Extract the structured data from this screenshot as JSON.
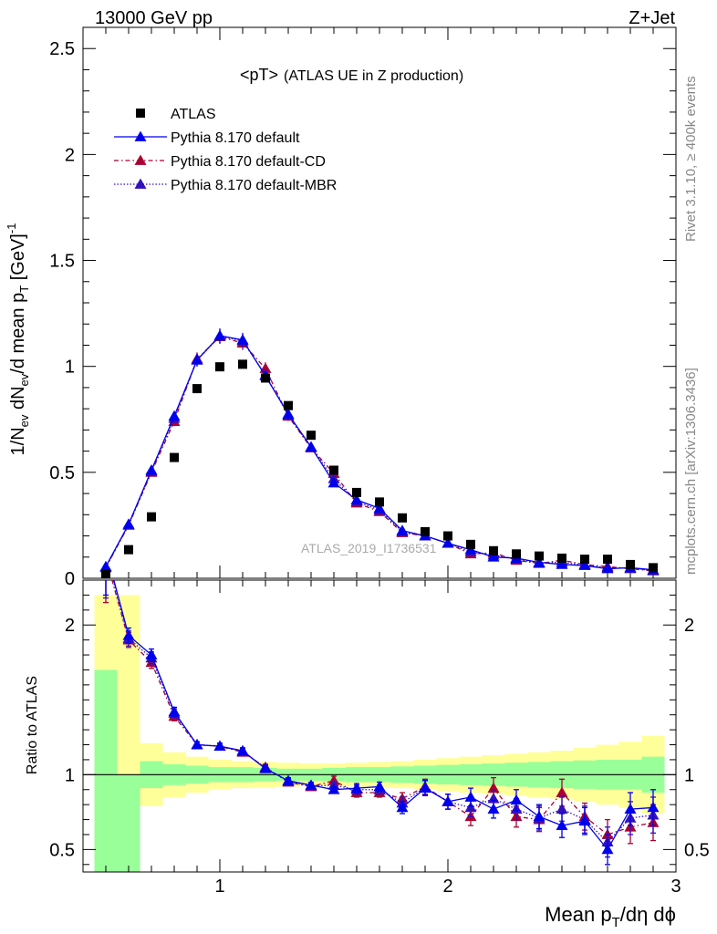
{
  "header": {
    "left": "13000 GeV pp",
    "right": "Z+Jet"
  },
  "side_text": {
    "rivet": "Rivet 3.1.10, ≥ 400k events",
    "mcplots": "mcplots.cern.ch [arXiv:1306.3436]"
  },
  "plot_title": {
    "main": "<pT>",
    "sub": "(ATLAS UE in Z production)"
  },
  "watermark": "ATLAS_2019_I1736531",
  "colors": {
    "data": "#000000",
    "default": "#0000ee",
    "cd": "#aa0033",
    "mbr": "#3311bb",
    "band_inner": "#99ff99",
    "band_outer": "#ffff99"
  },
  "chart_data": [
    {
      "type": "scatter",
      "panel": "main",
      "ylabel_parts": [
        "1/N",
        "ev",
        " dN",
        "ev",
        "/d mean p",
        "T",
        " [GeV]",
        "-1"
      ],
      "xlim": [
        0.4,
        3.0
      ],
      "ylim": [
        0,
        2.6
      ],
      "yticks": [
        0,
        0.5,
        1,
        1.5,
        2,
        2.5
      ],
      "ytick_labels": [
        "0",
        "0.5",
        "1",
        "1.5",
        "2",
        "2.5"
      ],
      "x": [
        0.5,
        0.6,
        0.7,
        0.8,
        0.9,
        1.0,
        1.1,
        1.2,
        1.3,
        1.4,
        1.5,
        1.6,
        1.7,
        1.8,
        1.9,
        2.0,
        2.1,
        2.2,
        2.3,
        2.4,
        2.5,
        2.6,
        2.7,
        2.8,
        2.9
      ],
      "legend_position": "top-left",
      "series": [
        {
          "name": "ATLAS",
          "key": "data",
          "values": [
            0.02,
            0.135,
            0.29,
            0.57,
            0.895,
            0.998,
            1.01,
            0.945,
            0.815,
            0.675,
            0.51,
            0.405,
            0.36,
            0.285,
            0.22,
            0.2,
            0.16,
            0.13,
            0.115,
            0.105,
            0.095,
            0.09,
            0.09,
            0.065,
            0.05
          ]
        },
        {
          "name": "Pythia 8.170 default",
          "key": "default",
          "values": [
            0.055,
            0.255,
            0.51,
            0.765,
            1.03,
            1.145,
            1.125,
            0.955,
            0.775,
            0.62,
            0.45,
            0.37,
            0.33,
            0.225,
            0.2,
            0.165,
            0.135,
            0.1,
            0.095,
            0.075,
            0.065,
            0.06,
            0.045,
            0.05,
            0.04
          ]
        },
        {
          "name": "Pythia 8.170 default-CD",
          "key": "cd",
          "values": [
            0.05,
            0.25,
            0.5,
            0.74,
            1.035,
            1.14,
            1.11,
            0.99,
            0.765,
            0.615,
            0.495,
            0.355,
            0.315,
            0.215,
            0.2,
            0.165,
            0.115,
            0.12,
            0.085,
            0.07,
            0.085,
            0.065,
            0.055,
            0.045,
            0.035
          ]
        },
        {
          "name": "Pythia 8.170 default-MBR",
          "key": "mbr",
          "values": [
            0.052,
            0.252,
            0.505,
            0.755,
            1.03,
            1.142,
            1.12,
            0.96,
            0.77,
            0.618,
            0.47,
            0.362,
            0.322,
            0.22,
            0.2,
            0.165,
            0.125,
            0.11,
            0.09,
            0.072,
            0.075,
            0.062,
            0.05,
            0.047,
            0.037
          ]
        }
      ]
    },
    {
      "type": "line",
      "panel": "ratio",
      "ylabel": "Ratio to ATLAS",
      "xlabel_parts": [
        "Mean p",
        "T",
        "/dη dϕ"
      ],
      "xlim": [
        0.4,
        3.0
      ],
      "ylim": [
        0.35,
        2.3
      ],
      "xticks": [
        1,
        2,
        3
      ],
      "xtick_labels": [
        "1",
        "2",
        "3"
      ],
      "yticks": [
        0.5,
        1,
        2
      ],
      "ytick_labels": [
        "0.5",
        "1",
        "2"
      ],
      "x": [
        0.5,
        0.6,
        0.7,
        0.8,
        0.9,
        1.0,
        1.1,
        1.2,
        1.3,
        1.4,
        1.5,
        1.6,
        1.7,
        1.8,
        1.9,
        2.0,
        2.1,
        2.2,
        2.3,
        2.4,
        2.5,
        2.6,
        2.7,
        2.8,
        2.9
      ],
      "bands": {
        "x_edges": [
          0.45,
          0.55,
          0.65,
          0.75,
          0.85,
          0.95,
          1.05,
          1.15,
          1.25,
          1.35,
          1.45,
          1.55,
          1.65,
          1.75,
          1.85,
          1.95,
          2.05,
          2.15,
          2.25,
          2.35,
          2.45,
          2.55,
          2.65,
          2.75,
          2.85,
          2.95
        ],
        "inner_lo": [
          0.35,
          0.35,
          0.91,
          0.93,
          0.94,
          0.95,
          0.95,
          0.955,
          0.96,
          0.96,
          0.955,
          0.95,
          0.95,
          0.945,
          0.94,
          0.935,
          0.93,
          0.925,
          0.92,
          0.915,
          0.91,
          0.905,
          0.9,
          0.9,
          0.88
        ],
        "inner_hi": [
          1.7,
          1.0,
          1.09,
          1.07,
          1.06,
          1.05,
          1.05,
          1.045,
          1.04,
          1.04,
          1.045,
          1.05,
          1.05,
          1.055,
          1.06,
          1.065,
          1.07,
          1.075,
          1.08,
          1.085,
          1.09,
          1.095,
          1.1,
          1.1,
          1.12
        ],
        "outer_lo": [
          0.35,
          0.35,
          0.79,
          0.85,
          0.88,
          0.9,
          0.91,
          0.915,
          0.92,
          0.925,
          0.925,
          0.92,
          0.915,
          0.91,
          0.9,
          0.89,
          0.88,
          0.87,
          0.86,
          0.85,
          0.84,
          0.82,
          0.8,
          0.78,
          0.74
        ],
        "outer_hi": [
          2.2,
          2.2,
          1.21,
          1.15,
          1.12,
          1.1,
          1.09,
          1.085,
          1.08,
          1.075,
          1.075,
          1.08,
          1.085,
          1.09,
          1.1,
          1.11,
          1.12,
          1.13,
          1.14,
          1.15,
          1.16,
          1.18,
          1.2,
          1.22,
          1.26
        ]
      },
      "series": [
        {
          "name": "Pythia 8.170 default",
          "key": "default",
          "values": [
            2.5,
            1.93,
            1.8,
            1.42,
            1.2,
            1.19,
            1.16,
            1.04,
            0.96,
            0.93,
            0.9,
            0.91,
            0.92,
            0.78,
            0.91,
            0.82,
            0.85,
            0.77,
            0.83,
            0.72,
            0.66,
            0.69,
            0.5,
            0.77,
            0.78
          ],
          "errors": [
            0.3,
            0.05,
            0.04,
            0.03,
            0.02,
            0.02,
            0.02,
            0.02,
            0.02,
            0.02,
            0.02,
            0.03,
            0.03,
            0.04,
            0.05,
            0.05,
            0.06,
            0.06,
            0.07,
            0.08,
            0.08,
            0.09,
            0.1,
            0.11,
            0.12
          ]
        },
        {
          "name": "Pythia 8.170 default-CD",
          "key": "cd",
          "values": [
            2.45,
            1.9,
            1.75,
            1.39,
            1.2,
            1.19,
            1.15,
            1.05,
            0.95,
            0.92,
            0.96,
            0.88,
            0.88,
            0.84,
            0.92,
            0.82,
            0.72,
            0.91,
            0.72,
            0.7,
            0.88,
            0.72,
            0.6,
            0.65,
            0.68
          ],
          "errors": [
            0.3,
            0.05,
            0.04,
            0.03,
            0.02,
            0.02,
            0.02,
            0.02,
            0.02,
            0.02,
            0.03,
            0.03,
            0.03,
            0.04,
            0.05,
            0.05,
            0.06,
            0.07,
            0.07,
            0.08,
            0.09,
            0.09,
            0.1,
            0.11,
            0.12
          ]
        },
        {
          "name": "Pythia 8.170 default-MBR",
          "key": "mbr",
          "values": [
            2.48,
            1.91,
            1.78,
            1.41,
            1.2,
            1.19,
            1.155,
            1.045,
            0.955,
            0.925,
            0.93,
            0.9,
            0.9,
            0.81,
            0.915,
            0.82,
            0.78,
            0.84,
            0.77,
            0.71,
            0.77,
            0.7,
            0.55,
            0.71,
            0.73
          ],
          "errors": [
            0.3,
            0.05,
            0.04,
            0.03,
            0.02,
            0.02,
            0.02,
            0.02,
            0.02,
            0.02,
            0.02,
            0.03,
            0.03,
            0.04,
            0.05,
            0.05,
            0.06,
            0.06,
            0.07,
            0.08,
            0.08,
            0.09,
            0.1,
            0.11,
            0.12
          ]
        }
      ]
    }
  ]
}
